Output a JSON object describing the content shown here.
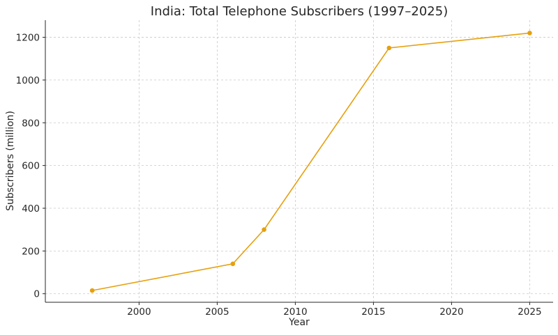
{
  "chart_data": {
    "type": "line",
    "title": "India: Total Telephone Subscribers (1997–2025)",
    "xlabel": "Year",
    "ylabel": "Subscribers (million)",
    "xlim": [
      1994,
      2026.5
    ],
    "ylim": [
      -40,
      1280
    ],
    "xticks": [
      2000,
      2005,
      2010,
      2015,
      2020,
      2025
    ],
    "yticks": [
      0,
      200,
      400,
      600,
      800,
      1000,
      1200
    ],
    "grid": true,
    "series": [
      {
        "color": "#e6a00e",
        "x": [
          1997,
          2006,
          2008,
          2016,
          2025
        ],
        "y": [
          15,
          140,
          300,
          1150,
          1220
        ]
      }
    ]
  }
}
